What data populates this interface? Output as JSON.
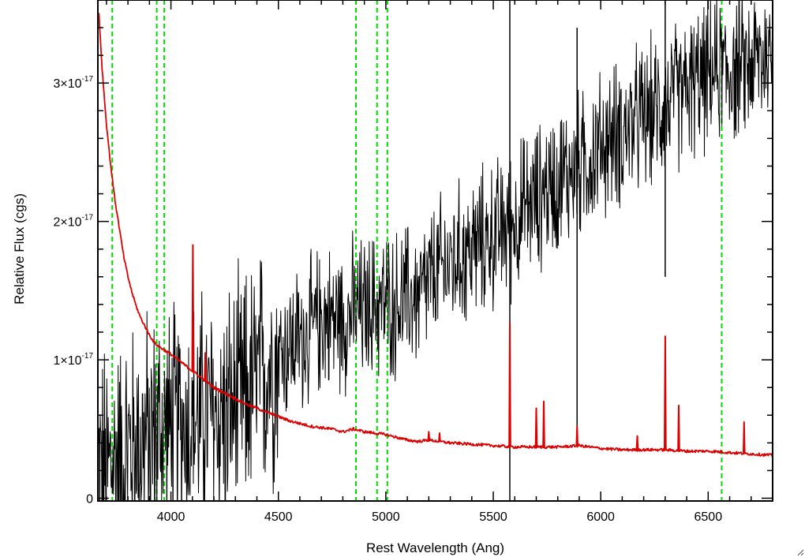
{
  "chart_data": {
    "type": "line",
    "title": "",
    "xlabel": "Rest Wavelength (Ang)",
    "ylabel": "Relative Flux (cgs)",
    "xlim": [
      3660,
      6800
    ],
    "ylim": [
      -2e-19,
      3.6e-17
    ],
    "x_ticks": [
      {
        "value": 4000,
        "label": "4000"
      },
      {
        "value": 4500,
        "label": "4500"
      },
      {
        "value": 5000,
        "label": "5000"
      },
      {
        "value": 5500,
        "label": "5500"
      },
      {
        "value": 6000,
        "label": "6000"
      },
      {
        "value": 6500,
        "label": "6500"
      }
    ],
    "y_ticks": [
      {
        "value": 0,
        "mantissa": "0",
        "exponent": ""
      },
      {
        "value": 1e-17,
        "mantissa": "1×10",
        "exponent": "-17"
      },
      {
        "value": 2e-17,
        "mantissa": "2×10",
        "exponent": "-17"
      },
      {
        "value": 3e-17,
        "mantissa": "3×10",
        "exponent": "-17"
      }
    ],
    "grid": false,
    "legend": "none",
    "colors": {
      "observed": "#000000",
      "model": "#dd0000",
      "markers": "#00dd00"
    },
    "marker_lines": [
      3727,
      3934,
      3969,
      4861,
      4959,
      5007,
      6563
    ],
    "observed_spectrum": {
      "description_trend": "noisy spectrum rising from near zero at 3700 Ang to ~3.2e-17 at 6800 Ang",
      "x": [
        3700,
        3750,
        3800,
        3850,
        3900,
        3950,
        4000,
        4050,
        4100,
        4150,
        4200,
        4250,
        4300,
        4350,
        4400,
        4450,
        4500,
        4550,
        4600,
        4650,
        4700,
        4750,
        4800,
        4850,
        4900,
        4950,
        5000,
        5050,
        5100,
        5150,
        5200,
        5250,
        5300,
        5350,
        5400,
        5450,
        5500,
        5550,
        5600,
        5650,
        5700,
        5750,
        5800,
        5850,
        5900,
        5950,
        6000,
        6050,
        6100,
        6150,
        6200,
        6250,
        6300,
        6350,
        6400,
        6450,
        6500,
        6550,
        6600,
        6650,
        6700,
        6750,
        6800
      ],
      "y": [
        2e-18,
        3e-18,
        3.5e-18,
        4e-18,
        4.5e-18,
        5e-18,
        5e-18,
        5.5e-18,
        5.5e-18,
        6e-18,
        6e-18,
        6e-18,
        6.5e-18,
        7.5e-18,
        8.5e-18,
        9.5e-18,
        1.05e-17,
        1.1e-17,
        1.15e-17,
        1.2e-17,
        1.3e-17,
        1.3e-17,
        1.3e-17,
        1.35e-17,
        1.35e-17,
        1.4e-17,
        1.4e-17,
        1.4e-17,
        1.45e-17,
        1.45e-17,
        1.55e-17,
        1.65e-17,
        1.7e-17,
        1.75e-17,
        1.8e-17,
        1.85e-17,
        1.9e-17,
        1.95e-17,
        2e-17,
        2.1e-17,
        2.15e-17,
        2.25e-17,
        2.3e-17,
        2.35e-17,
        2.4e-17,
        2.45e-17,
        2.55e-17,
        2.6e-17,
        2.65e-17,
        2.7e-17,
        2.75e-17,
        2.8e-17,
        2.85e-17,
        2.9e-17,
        2.95e-17,
        3e-17,
        3.05e-17,
        3.1e-17,
        3.1e-17,
        3.1e-17,
        3.15e-17,
        3.2e-17,
        3.2e-17
      ]
    },
    "model_spectrum": {
      "x": [
        3665,
        3680,
        3700,
        3720,
        3740,
        3760,
        3780,
        3800,
        3820,
        3840,
        3860,
        3880,
        3900,
        3920,
        3940,
        3960,
        3980,
        4000,
        4050,
        4100,
        4150,
        4200,
        4250,
        4300,
        4350,
        4400,
        4450,
        4500,
        4550,
        4600,
        4650,
        4700,
        4750,
        4800,
        4850,
        4900,
        4950,
        5000,
        5050,
        5100,
        5150,
        5200,
        5300,
        5400,
        5500,
        5600,
        5700,
        5800,
        5900,
        6000,
        6100,
        6200,
        6300,
        6400,
        6500,
        6600,
        6700,
        6800
      ],
      "y": [
        3.5e-17,
        3.1e-17,
        2.7e-17,
        2.4e-17,
        2.15e-17,
        1.95e-17,
        1.75e-17,
        1.6e-17,
        1.48e-17,
        1.38e-17,
        1.3e-17,
        1.24e-17,
        1.18e-17,
        1.13e-17,
        1.1e-17,
        1.08e-17,
        1.06e-17,
        1.04e-17,
        9.8e-18,
        9.2e-18,
        8.6e-18,
        8e-18,
        7.6e-18,
        7.2e-18,
        6.8e-18,
        6.5e-18,
        6.2e-18,
        5.9e-18,
        5.6e-18,
        5.4e-18,
        5.2e-18,
        5.1e-18,
        5e-18,
        4.8e-18,
        5e-18,
        4.8e-18,
        4.7e-18,
        4.6e-18,
        4.4e-18,
        4.2e-18,
        4.1e-18,
        4.2e-18,
        4e-18,
        3.9e-18,
        3.8e-18,
        3.7e-18,
        3.7e-18,
        3.7e-18,
        3.8e-18,
        3.6e-18,
        3.5e-18,
        3.5e-18,
        3.5e-18,
        3.4e-18,
        3.4e-18,
        3.3e-18,
        3.2e-18,
        3.1e-18
      ]
    },
    "model_emission_lines": [
      {
        "x": 4102,
        "peak": 1.83e-17
      },
      {
        "x": 4160,
        "peak": 1.05e-17
      },
      {
        "x": 5200,
        "peak": 4.8e-18
      },
      {
        "x": 5250,
        "peak": 4.7e-18
      },
      {
        "x": 5577,
        "peak": 1.27e-17
      },
      {
        "x": 5700,
        "peak": 6.5e-18
      },
      {
        "x": 5735,
        "peak": 7e-18
      },
      {
        "x": 5890,
        "peak": 5.2e-18
      },
      {
        "x": 6170,
        "peak": 4.5e-18
      },
      {
        "x": 6300,
        "peak": 1.17e-17
      },
      {
        "x": 6363,
        "peak": 6.7e-18
      },
      {
        "x": 6667,
        "peak": 5.5e-18
      }
    ],
    "observed_features": [
      {
        "x": 5577,
        "from": -2e-19,
        "to": 3.6e-17
      },
      {
        "x": 5890,
        "from": 4e-18,
        "to": 3.4e-17
      },
      {
        "x": 6300,
        "from": 1.6e-17,
        "to": 3.6e-17
      }
    ]
  }
}
